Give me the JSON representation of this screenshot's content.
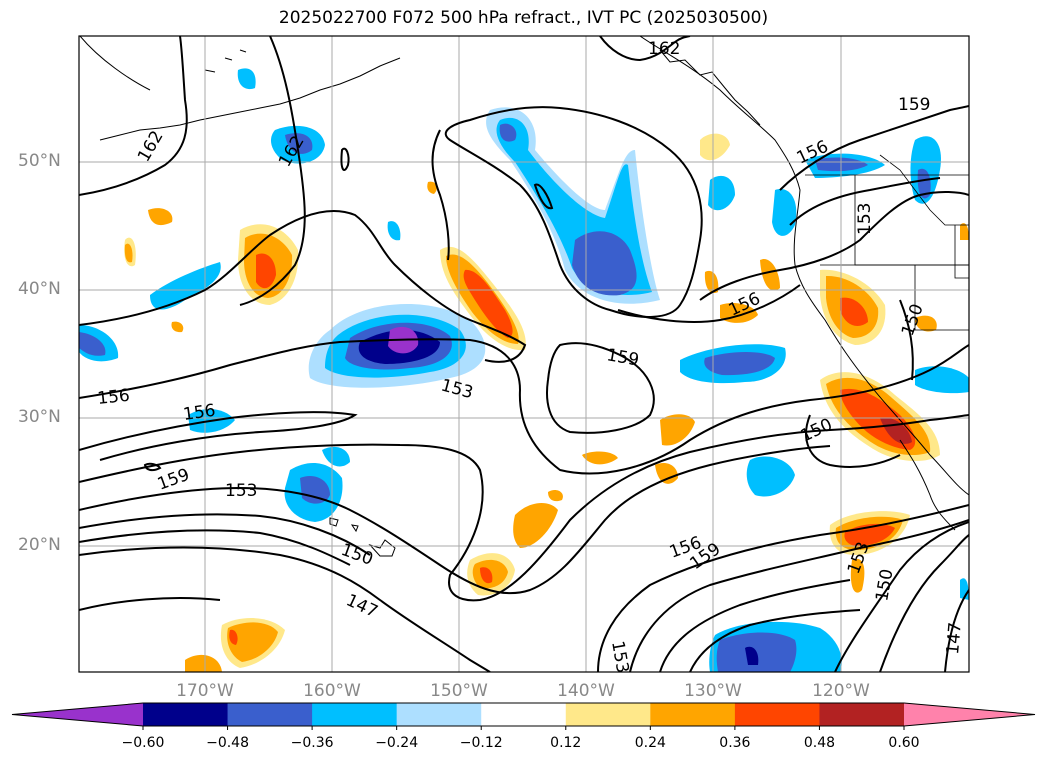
{
  "title": "2025022700 F072 500 hPa refract., IVT PC (2025030500)",
  "lat_labels": [
    "50°N",
    "40°N",
    "30°N",
    "20°N"
  ],
  "lon_labels": [
    "170°W",
    "160°W",
    "150°W",
    "140°W",
    "130°W",
    "120°W"
  ],
  "contour_labels": [
    "162",
    "162",
    "162",
    "156",
    "159",
    "159",
    "156",
    "153",
    "156",
    "150",
    "159",
    "153",
    "150",
    "147",
    "156",
    "159",
    "153",
    "150",
    "147",
    "153",
    "150",
    "153",
    "156",
    "159"
  ],
  "colorbar": {
    "ticks": [
      "−0.60",
      "−0.48",
      "−0.36",
      "−0.24",
      "−0.12",
      "0.12",
      "0.24",
      "0.36",
      "0.48",
      "0.60"
    ],
    "colors": [
      "#9932CC",
      "#00008B",
      "#3A5FCD",
      "#00BFFF",
      "#ADDFFF",
      "#FFFFFF",
      "#FFE88A",
      "#FFA500",
      "#FF4500",
      "#B22222",
      "#FF82AB"
    ]
  }
}
